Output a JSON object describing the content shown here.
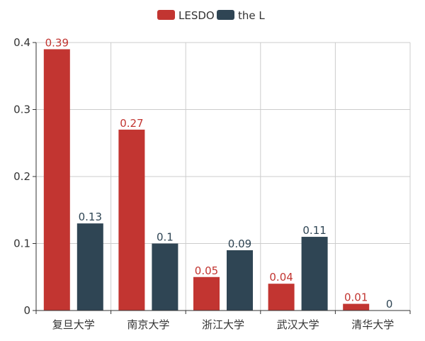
{
  "chart_data": {
    "type": "bar",
    "title": "",
    "xlabel": "",
    "ylabel": "",
    "categories": [
      "复旦大学",
      "南京大学",
      "浙江大学",
      "武汉大学",
      "清华大学"
    ],
    "series": [
      {
        "name": "LESDO",
        "values": [
          0.39,
          0.27,
          0.05,
          0.04,
          0.01
        ],
        "color": "#c23531"
      },
      {
        "name": "the L",
        "values": [
          0.13,
          0.1,
          0.09,
          0.11,
          0
        ],
        "color": "#2f4554"
      }
    ],
    "ylim": [
      0,
      0.4
    ],
    "yticks": [
      0,
      0.1,
      0.2,
      0.3,
      0.4
    ],
    "ytick_labels": [
      "0",
      "0.1",
      "0.2",
      "0.3",
      "0.4"
    ],
    "grid": true,
    "legend_position": "top-center",
    "data_labels": true,
    "colors": {
      "axis": "#333333",
      "grid": "#cccccc",
      "text": "#333333"
    }
  }
}
